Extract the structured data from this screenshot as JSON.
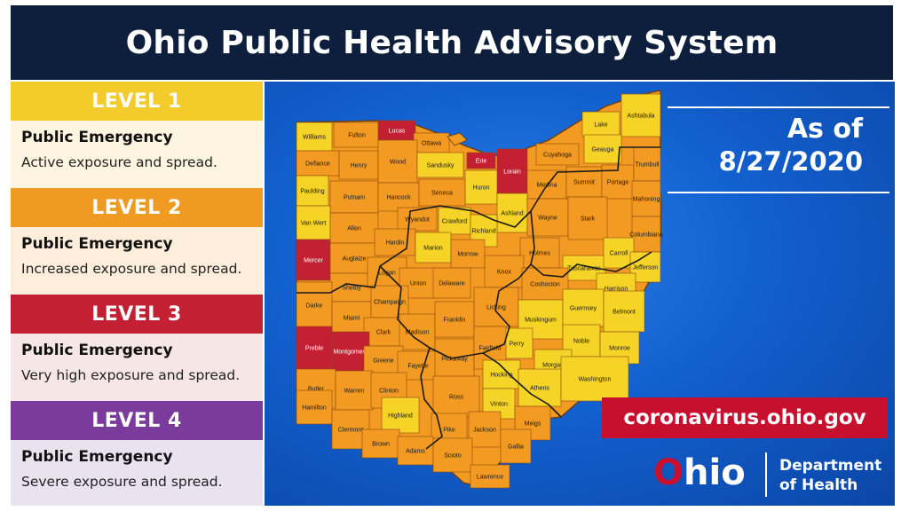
{
  "title": "Ohio Public Health Advisory System",
  "levels": [
    {
      "header": "LEVEL 1",
      "title": "Public Emergency",
      "desc": "Active exposure and spread.",
      "head_color": "#f3cc2c",
      "body_color": "#fdf5df"
    },
    {
      "header": "LEVEL 2",
      "title": "Public Emergency",
      "desc": "Increased exposure and spread.",
      "head_color": "#ef9a22",
      "body_color": "#fdeedc"
    },
    {
      "header": "LEVEL 3",
      "title": "Public Emergency",
      "desc": "Very high exposure and spread.",
      "head_color": "#c42033",
      "body_color": "#f6e6e6"
    },
    {
      "header": "LEVEL 4",
      "title": "Public Emergency",
      "desc": "Severe exposure and spread.",
      "head_color": "#7a3b9c",
      "body_color": "#ebe2f0"
    }
  ],
  "as_of": {
    "label": "As of",
    "date": "8/27/2020"
  },
  "url": "coronavirus.ohio.gov",
  "logo": {
    "brand_O": "O",
    "brand_rest": "hio",
    "dept_line1": "Department",
    "dept_line2": "of Health"
  },
  "colors": {
    "level1": "#f5d327",
    "level2": "#f29a22",
    "level3": "#c42033",
    "background": "#1466d6",
    "header": "#0d1f3c"
  },
  "counties": [
    {
      "name": "Williams",
      "level": 1
    },
    {
      "name": "Fulton",
      "level": 2
    },
    {
      "name": "Lucas",
      "level": 3
    },
    {
      "name": "Ottawa",
      "level": 2
    },
    {
      "name": "Erie",
      "level": 3
    },
    {
      "name": "Lorain",
      "level": 3
    },
    {
      "name": "Cuyahoga",
      "level": 2
    },
    {
      "name": "Lake",
      "level": 1
    },
    {
      "name": "Ashtabula",
      "level": 1
    },
    {
      "name": "Defiance",
      "level": 2
    },
    {
      "name": "Henry",
      "level": 2
    },
    {
      "name": "Wood",
      "level": 2
    },
    {
      "name": "Sandusky",
      "level": 1
    },
    {
      "name": "Huron",
      "level": 1
    },
    {
      "name": "Medina",
      "level": 2
    },
    {
      "name": "Summit",
      "level": 2
    },
    {
      "name": "Portage",
      "level": 2
    },
    {
      "name": "Geauga",
      "level": 1
    },
    {
      "name": "Trumbull",
      "level": 2
    },
    {
      "name": "Paulding",
      "level": 1
    },
    {
      "name": "Putnam",
      "level": 2
    },
    {
      "name": "Hancock",
      "level": 2
    },
    {
      "name": "Seneca",
      "level": 2
    },
    {
      "name": "Ashland",
      "level": 1
    },
    {
      "name": "Wayne",
      "level": 2
    },
    {
      "name": "Stark",
      "level": 2
    },
    {
      "name": "Mahoning",
      "level": 2
    },
    {
      "name": "Columbiana",
      "level": 2
    },
    {
      "name": "Van Wert",
      "level": 1
    },
    {
      "name": "Allen",
      "level": 2
    },
    {
      "name": "Wyandot",
      "level": 2
    },
    {
      "name": "Crawford",
      "level": 1
    },
    {
      "name": "Richland",
      "level": 1
    },
    {
      "name": "Mercer",
      "level": 3
    },
    {
      "name": "Auglaize",
      "level": 2
    },
    {
      "name": "Hardin",
      "level": 2
    },
    {
      "name": "Marion",
      "level": 1
    },
    {
      "name": "Morrow",
      "level": 2
    },
    {
      "name": "Holmes",
      "level": 2
    },
    {
      "name": "Tuscarawas",
      "level": 1
    },
    {
      "name": "Carroll",
      "level": 1
    },
    {
      "name": "Jefferson",
      "level": 1
    },
    {
      "name": "Shelby",
      "level": 2
    },
    {
      "name": "Logan",
      "level": 2
    },
    {
      "name": "Union",
      "level": 2
    },
    {
      "name": "Delaware",
      "level": 2
    },
    {
      "name": "Knox",
      "level": 2
    },
    {
      "name": "Coshocton",
      "level": 2
    },
    {
      "name": "Harrison",
      "level": 1
    },
    {
      "name": "Darke",
      "level": 2
    },
    {
      "name": "Miami",
      "level": 2
    },
    {
      "name": "Champaign",
      "level": 2
    },
    {
      "name": "Licking",
      "level": 2
    },
    {
      "name": "Muskingum",
      "level": 1
    },
    {
      "name": "Guernsey",
      "level": 1
    },
    {
      "name": "Belmont",
      "level": 1
    },
    {
      "name": "Clark",
      "level": 2
    },
    {
      "name": "Madison",
      "level": 2
    },
    {
      "name": "Franklin",
      "level": 2
    },
    {
      "name": "Perry",
      "level": 1
    },
    {
      "name": "Noble",
      "level": 1
    },
    {
      "name": "Monroe",
      "level": 1
    },
    {
      "name": "Preble",
      "level": 3
    },
    {
      "name": "Montgomery",
      "level": 3
    },
    {
      "name": "Greene",
      "level": 2
    },
    {
      "name": "Fayette",
      "level": 2
    },
    {
      "name": "Pickaway",
      "level": 2
    },
    {
      "name": "Fairfield",
      "level": 2
    },
    {
      "name": "Morgan",
      "level": 1
    },
    {
      "name": "Butler",
      "level": 2
    },
    {
      "name": "Warren",
      "level": 2
    },
    {
      "name": "Clinton",
      "level": 2
    },
    {
      "name": "Hocking",
      "level": 1
    },
    {
      "name": "Athens",
      "level": 1
    },
    {
      "name": "Washington",
      "level": 1
    },
    {
      "name": "Hamilton",
      "level": 2
    },
    {
      "name": "Highland",
      "level": 1
    },
    {
      "name": "Ross",
      "level": 2
    },
    {
      "name": "Vinton",
      "level": 1
    },
    {
      "name": "Clermont",
      "level": 2
    },
    {
      "name": "Pike",
      "level": 2
    },
    {
      "name": "Jackson",
      "level": 2
    },
    {
      "name": "Meigs",
      "level": 2
    },
    {
      "name": "Brown",
      "level": 2
    },
    {
      "name": "Adams",
      "level": 2
    },
    {
      "name": "Scioto",
      "level": 2
    },
    {
      "name": "Gallia",
      "level": 2
    },
    {
      "name": "Lawrence",
      "level": 2
    }
  ]
}
